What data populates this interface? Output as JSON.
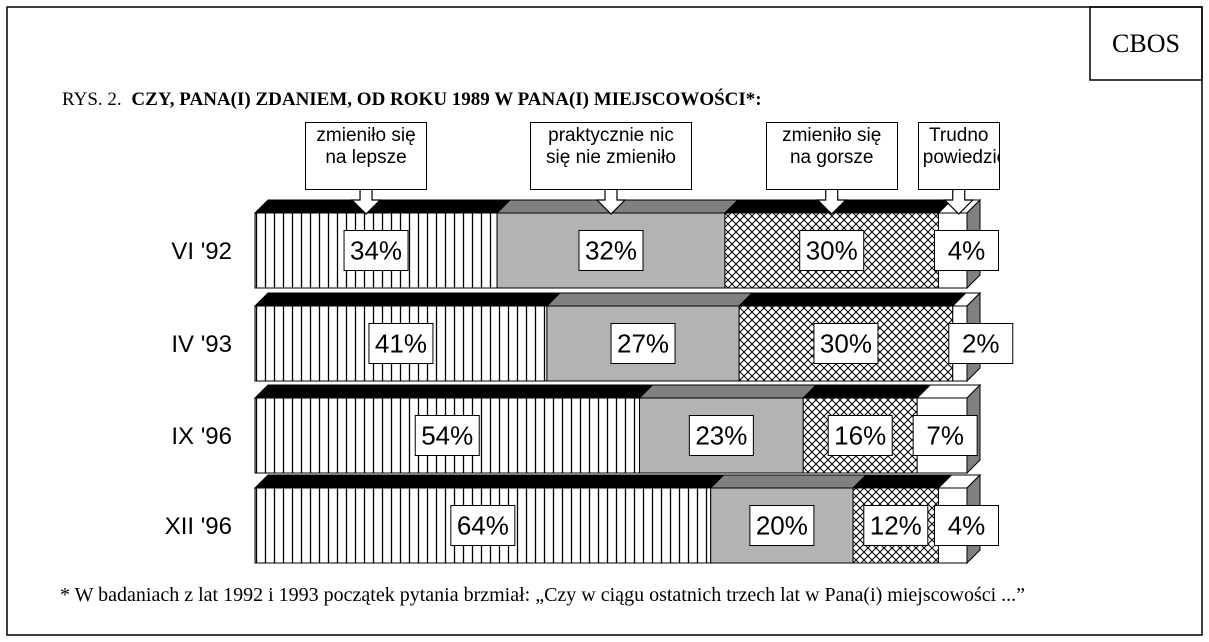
{
  "chart_data": {
    "type": "bar",
    "orientation": "horizontal",
    "stacked": true,
    "source": "CBOS",
    "title_prefix": "RYS. 2.",
    "title": "CZY, PANA(I) ZDANIEM, OD ROKU 1989 W PANA(I) MIEJSCOWOŚCI*:",
    "footnote": "* W badaniach z lat 1992 i 1993 początek pytania brzmiał: „Czy w ciągu ostatnich trzech lat w Pana(i) miejscowości ...”",
    "categories": [
      "VI '92",
      "IV '93",
      "IX '96",
      "XII '96"
    ],
    "series": [
      {
        "name": "zmieniło się na lepsze",
        "color": "#ffffff",
        "top_color": "#000000",
        "hatch": "vertical",
        "values": [
          34,
          41,
          54,
          64
        ],
        "value_labels": [
          "34%",
          "41%",
          "54%",
          "64%"
        ]
      },
      {
        "name": "praktycznie nic się nie zmieniło",
        "color": "#b3b3b3",
        "top_color": "#808080",
        "values": [
          32,
          27,
          23,
          20
        ],
        "value_labels": [
          "32%",
          "27%",
          "23%",
          "20%"
        ]
      },
      {
        "name": "zmieniło się na gorsze",
        "color": "#ffffff",
        "top_color": "#000000",
        "hatch": "cross",
        "values": [
          30,
          30,
          16,
          12
        ],
        "value_labels": [
          "30%",
          "30%",
          "16%",
          "12%"
        ]
      },
      {
        "name": "Trudno powiedzieć",
        "color": "#ffffff",
        "top_color": "#ffffff",
        "values": [
          4,
          2,
          7,
          4
        ],
        "value_labels": [
          "4%",
          "2%",
          "7%",
          "4%"
        ]
      }
    ]
  }
}
